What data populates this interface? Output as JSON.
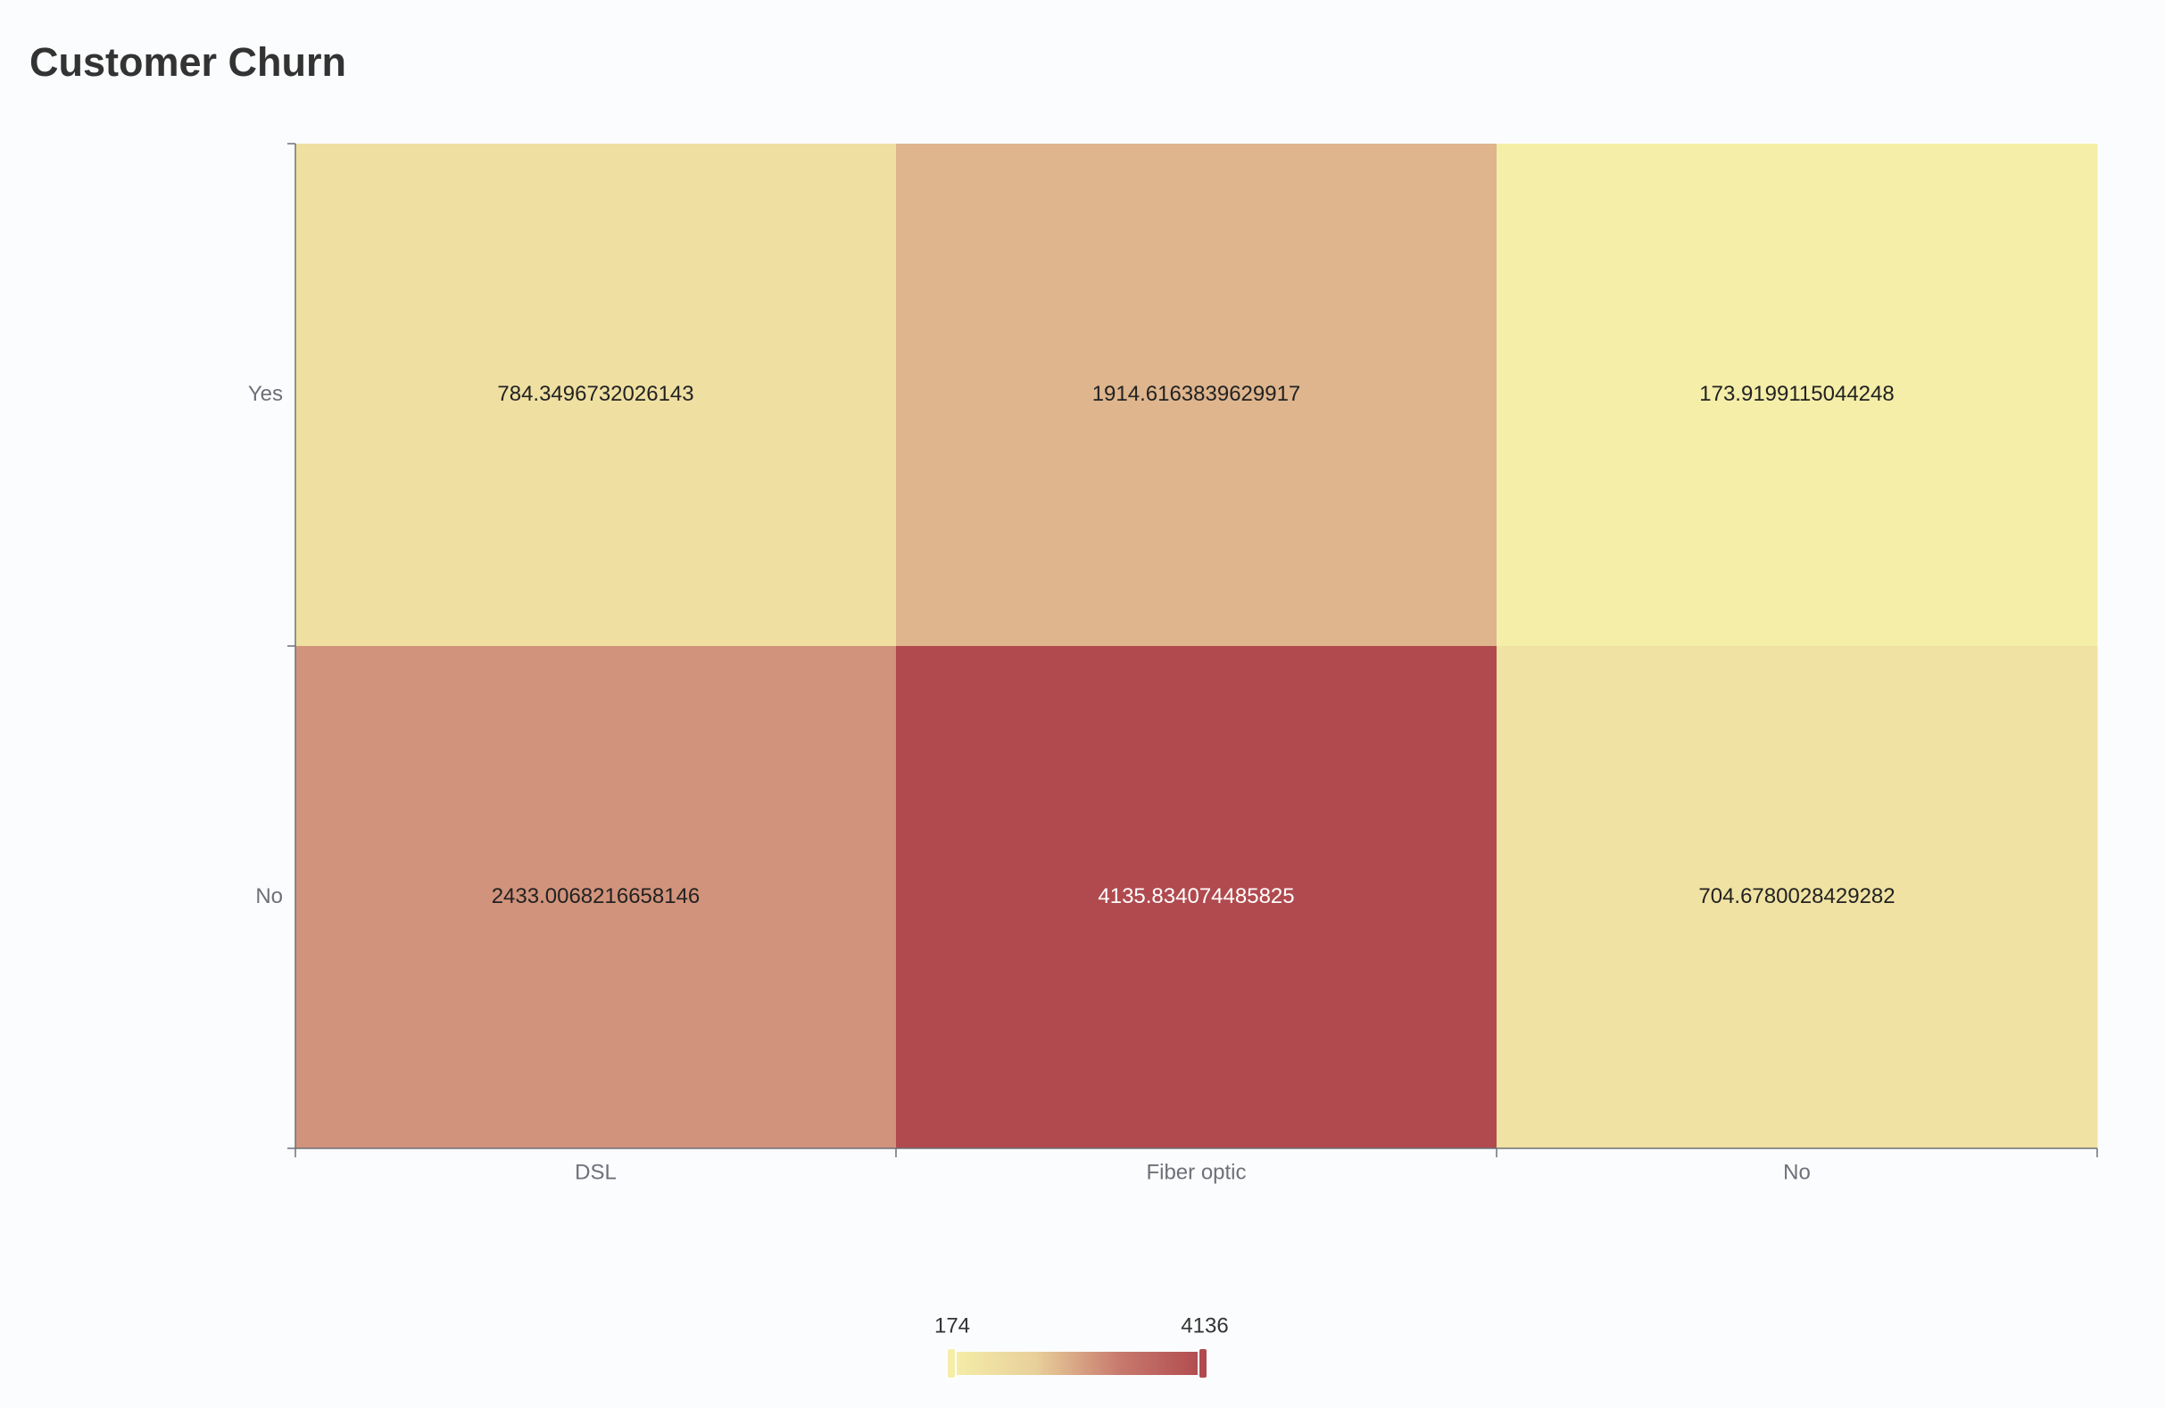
{
  "chart_data": {
    "type": "heatmap",
    "title": "Customer Churn",
    "x_categories": [
      "DSL",
      "Fiber optic",
      "No"
    ],
    "y_categories": [
      "Yes",
      "No"
    ],
    "cells": [
      {
        "x": "DSL",
        "y": "Yes",
        "value": 784.3496732026143,
        "label": "784.3496732026143"
      },
      {
        "x": "Fiber optic",
        "y": "Yes",
        "value": 1914.6163839629917,
        "label": "1914.6163839629917"
      },
      {
        "x": "No",
        "y": "Yes",
        "value": 173.9199115044248,
        "label": "173.9199115044248"
      },
      {
        "x": "DSL",
        "y": "No",
        "value": 2433.0068216658146,
        "label": "2433.0068216658146"
      },
      {
        "x": "Fiber optic",
        "y": "No",
        "value": 4135.834074485825,
        "label": "4135.834074485825"
      },
      {
        "x": "No",
        "y": "No",
        "value": 704.6780028429282,
        "label": "704.6780028429282"
      }
    ],
    "visual_map": {
      "min": 174,
      "max": 4136,
      "min_label": "174",
      "max_label": "4136",
      "colors": [
        "#f5eea8",
        "#e8d09b",
        "#c87a6e",
        "#b04a4e"
      ],
      "placement": "bottom-center"
    },
    "grid": false,
    "legend": "none"
  }
}
